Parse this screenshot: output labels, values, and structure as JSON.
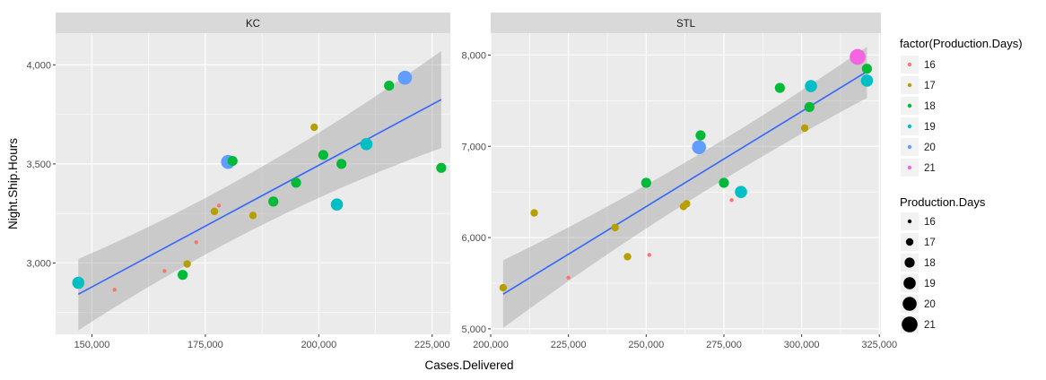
{
  "colors": {
    "panel_bg": "#EBEBEB",
    "strip_bg": "#D9D9D9",
    "grid": "#FFFFFF",
    "smooth_line": "#3366FF",
    "ribbon": "#999999",
    "days": {
      "16": "#F8766D",
      "17": "#B79F00",
      "18": "#00BA38",
      "19": "#00BFC4",
      "20": "#619CFF",
      "21": "#F564E3"
    }
  },
  "chart_data": [
    {
      "type": "scatter",
      "facet": "KC",
      "xlabel": "Cases.Delivered",
      "ylabel": "Night.Ship.Hours",
      "xlim": [
        142000,
        229000
      ],
      "ylim": [
        2640,
        4160
      ],
      "x_ticks": [
        150000,
        175000,
        200000,
        225000
      ],
      "x_tick_labels": [
        "150,000",
        "175,000",
        "200,000",
        "225,000"
      ],
      "y_ticks": [
        3000,
        3500,
        4000
      ],
      "y_tick_labels": [
        "3,000",
        "3,500",
        "4,000"
      ],
      "smooth": {
        "x": [
          147000,
          227000
        ],
        "y": [
          2842,
          3825
        ],
        "band_low": [
          2660,
          3580
        ],
        "band_high": [
          3020,
          4070
        ]
      },
      "points": [
        {
          "x": 147000,
          "y": 2900,
          "days": 19
        },
        {
          "x": 155000,
          "y": 2865,
          "days": 16
        },
        {
          "x": 166000,
          "y": 2960,
          "days": 16
        },
        {
          "x": 170000,
          "y": 2940,
          "days": 18
        },
        {
          "x": 171000,
          "y": 2995,
          "days": 17
        },
        {
          "x": 173000,
          "y": 3105,
          "days": 16
        },
        {
          "x": 177000,
          "y": 3260,
          "days": 17
        },
        {
          "x": 178000,
          "y": 3290,
          "days": 16
        },
        {
          "x": 180000,
          "y": 3510,
          "days": 20
        },
        {
          "x": 181000,
          "y": 3515,
          "days": 18
        },
        {
          "x": 185500,
          "y": 3240,
          "days": 17
        },
        {
          "x": 190000,
          "y": 3310,
          "days": 18
        },
        {
          "x": 195000,
          "y": 3405,
          "days": 18
        },
        {
          "x": 199000,
          "y": 3685,
          "days": 17
        },
        {
          "x": 201000,
          "y": 3545,
          "days": 18
        },
        {
          "x": 204000,
          "y": 3295,
          "days": 19
        },
        {
          "x": 205000,
          "y": 3500,
          "days": 18
        },
        {
          "x": 210500,
          "y": 3600,
          "days": 19
        },
        {
          "x": 215500,
          "y": 3895,
          "days": 18
        },
        {
          "x": 219000,
          "y": 3935,
          "days": 20
        },
        {
          "x": 227000,
          "y": 3480,
          "days": 18
        }
      ]
    },
    {
      "type": "scatter",
      "facet": "STL",
      "xlabel": "Cases.Delivered",
      "ylabel": "Night.Ship.Hours",
      "xlim": [
        200000,
        325500
      ],
      "ylim": [
        4940,
        8240
      ],
      "x_ticks": [
        200000,
        225000,
        250000,
        275000,
        300000,
        325000
      ],
      "x_tick_labels": [
        "200,000",
        "225,000",
        "250,000",
        "275,000",
        "300,000",
        "325,000"
      ],
      "y_ticks": [
        5000,
        6000,
        7000,
        8000
      ],
      "y_tick_labels": [
        "5,000",
        "6,000",
        "7,000",
        "8,000"
      ],
      "smooth": {
        "x": [
          204000,
          321000
        ],
        "y": [
          5380,
          7820
        ],
        "band_low": [
          5010,
          7530
        ],
        "band_high": [
          5750,
          8090
        ]
      },
      "points": [
        {
          "x": 204000,
          "y": 5450,
          "days": 17
        },
        {
          "x": 214000,
          "y": 6270,
          "days": 17
        },
        {
          "x": 225000,
          "y": 5560,
          "days": 16
        },
        {
          "x": 240000,
          "y": 6110,
          "days": 17
        },
        {
          "x": 244000,
          "y": 5790,
          "days": 17
        },
        {
          "x": 250000,
          "y": 6600,
          "days": 18
        },
        {
          "x": 251000,
          "y": 5810,
          "days": 16
        },
        {
          "x": 262000,
          "y": 6340,
          "days": 17
        },
        {
          "x": 263000,
          "y": 6370,
          "days": 17
        },
        {
          "x": 267000,
          "y": 6990,
          "days": 20
        },
        {
          "x": 267500,
          "y": 7120,
          "days": 18
        },
        {
          "x": 275000,
          "y": 6600,
          "days": 18
        },
        {
          "x": 277500,
          "y": 6410,
          "days": 16
        },
        {
          "x": 280500,
          "y": 6500,
          "days": 19
        },
        {
          "x": 293000,
          "y": 7640,
          "days": 18
        },
        {
          "x": 301000,
          "y": 7200,
          "days": 17
        },
        {
          "x": 302500,
          "y": 7430,
          "days": 18
        },
        {
          "x": 303000,
          "y": 7660,
          "days": 19
        },
        {
          "x": 318000,
          "y": 7980,
          "days": 21
        },
        {
          "x": 321000,
          "y": 7850,
          "days": 18
        },
        {
          "x": 321000,
          "y": 7720,
          "days": 19
        }
      ]
    }
  ],
  "legend": {
    "color_title": "factor(Production.Days)",
    "color_items": [
      {
        "label": "16",
        "days": 16
      },
      {
        "label": "17",
        "days": 17
      },
      {
        "label": "18",
        "days": 18
      },
      {
        "label": "19",
        "days": 19
      },
      {
        "label": "20",
        "days": 20
      },
      {
        "label": "21",
        "days": 21
      }
    ],
    "size_title": "Production.Days",
    "size_items": [
      {
        "label": "16",
        "days": 16
      },
      {
        "label": "17",
        "days": 17
      },
      {
        "label": "18",
        "days": 18
      },
      {
        "label": "19",
        "days": 19
      },
      {
        "label": "20",
        "days": 20
      },
      {
        "label": "21",
        "days": 21
      }
    ]
  },
  "size_scale": {
    "16": 2.2,
    "17": 4.2,
    "18": 5.6,
    "19": 6.8,
    "20": 7.8,
    "21": 8.8
  }
}
